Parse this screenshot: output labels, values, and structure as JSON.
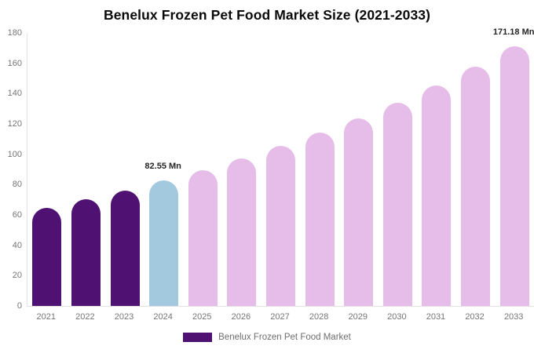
{
  "title": "Benelux Frozen Pet Food Market Size (2021-2033)",
  "legend": {
    "label": "Benelux Frozen Pet Food Market",
    "swatch_color": "#4f1273"
  },
  "colors": {
    "historical_bar": "#4f1273",
    "highlight_bar": "#a3c9df",
    "forecast_bar": "#e6bde9",
    "axis_line": "#e2e2e2",
    "tick_text": "#757575",
    "annotation_text": "#262626"
  },
  "chart_data": {
    "type": "bar",
    "title": "Benelux Frozen Pet Food Market Size (2021-2033)",
    "unit": "Mn",
    "categories": [
      "2021",
      "2022",
      "2023",
      "2024",
      "2025",
      "2026",
      "2027",
      "2028",
      "2029",
      "2030",
      "2031",
      "2032",
      "2033"
    ],
    "values": [
      64.7,
      70.2,
      76.1,
      82.55,
      89.5,
      97.1,
      105.3,
      114.2,
      123.8,
      134.2,
      145.6,
      157.8,
      171.18
    ],
    "point_roles": [
      "historical",
      "historical",
      "historical",
      "highlight",
      "forecast",
      "forecast",
      "forecast",
      "forecast",
      "forecast",
      "forecast",
      "forecast",
      "forecast",
      "forecast"
    ],
    "annotations": [
      {
        "category": "2024",
        "text": "82.55 Mn"
      },
      {
        "category": "2033",
        "text": "171.18 Mn"
      }
    ],
    "xlabel": "",
    "ylabel": "",
    "ylim": [
      0,
      180
    ],
    "ytick_step": 20,
    "grid": false,
    "legend_position": "bottom",
    "legend_entries": [
      "Benelux Frozen Pet Food Market"
    ]
  }
}
